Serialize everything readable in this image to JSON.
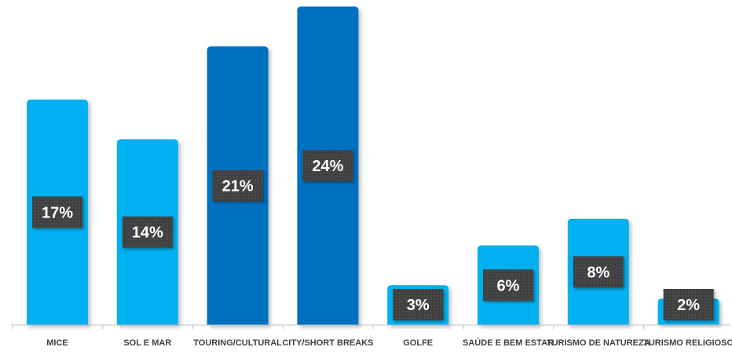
{
  "chart_data": {
    "type": "bar",
    "title": "",
    "xlabel": "",
    "ylabel": "",
    "ylim": [
      0,
      25
    ],
    "grid": false,
    "categories": [
      "MICE",
      "SOL E MAR",
      "TOURING/CULTURAL",
      "CITY/SHORT BREAKS",
      "GOLFE",
      "SAÚDE E BEM ESTAR",
      "TURISMO DE NATUREZA",
      "TURISMO RELIGIOSO"
    ],
    "values": [
      17,
      14,
      21,
      24,
      3,
      6,
      8,
      2
    ],
    "data_labels": [
      "17%",
      "14%",
      "21%",
      "24%",
      "3%",
      "6%",
      "8%",
      "2%"
    ],
    "bar_colors": [
      "#00B0F0",
      "#00B0F0",
      "#0070C0",
      "#0070C0",
      "#00B0F0",
      "#00B0F0",
      "#00B0F0",
      "#00B0F0"
    ],
    "label_box_color": "#3F3F3F"
  }
}
